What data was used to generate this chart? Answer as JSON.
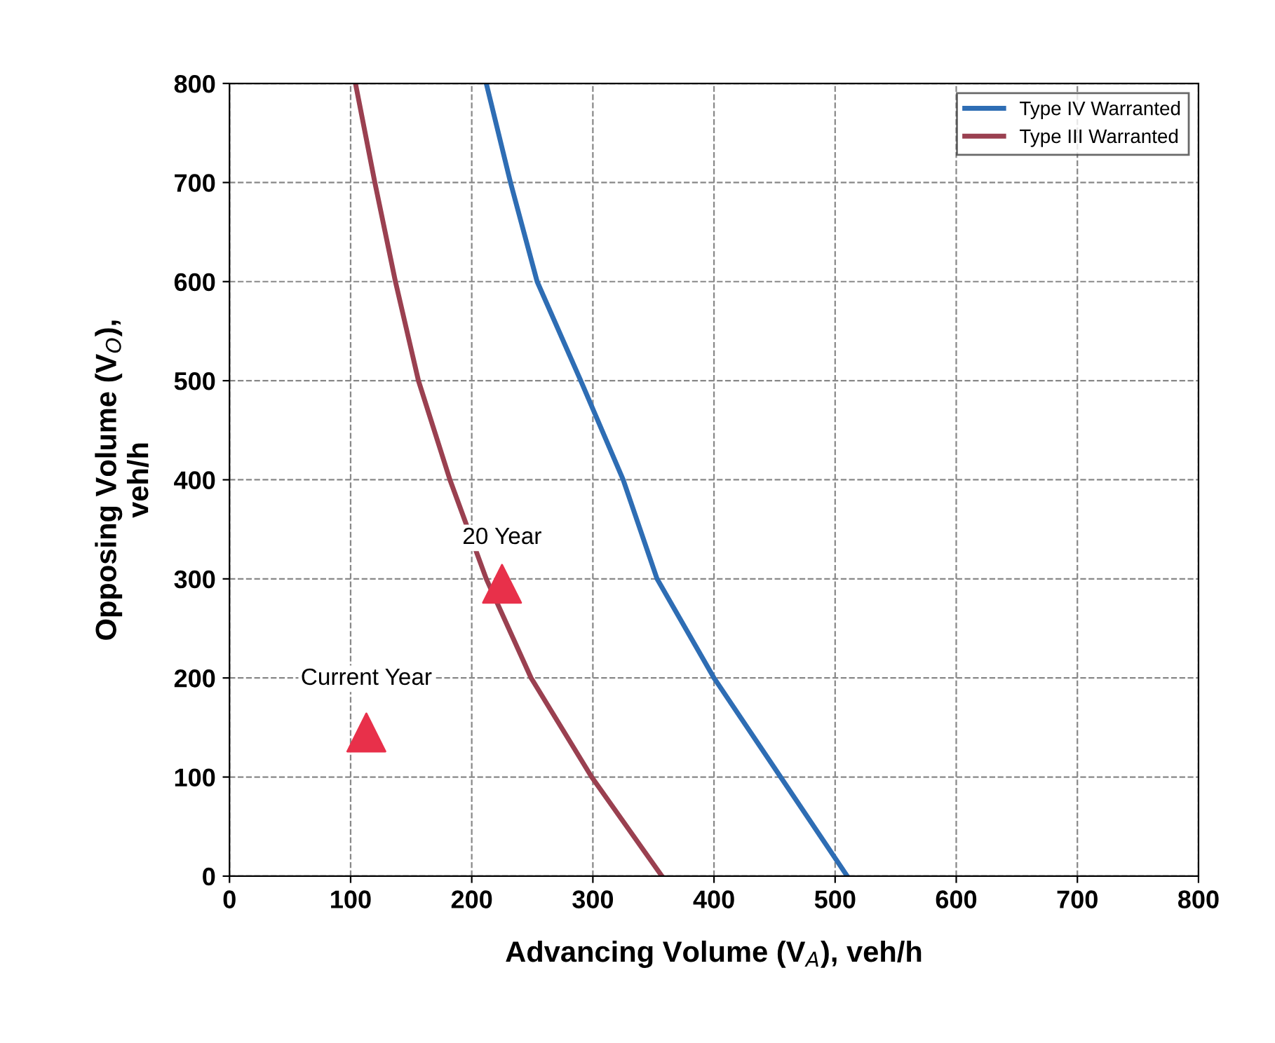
{
  "chart_data": {
    "type": "line",
    "xlabel": "Advancing Volume (V$_{A}$), veh/h",
    "ylabel": "Opposing Volume (V$_{O}$),\nveh/h",
    "xlim": [
      0,
      800
    ],
    "ylim": [
      0,
      800
    ],
    "xticks": [
      0,
      100,
      200,
      300,
      400,
      500,
      600,
      700,
      800
    ],
    "yticks": [
      0,
      100,
      200,
      300,
      400,
      500,
      600,
      700,
      800
    ],
    "grid": true,
    "legend": "top right",
    "series": [
      {
        "name": "Type IV Warranted",
        "color": "#2e6db4",
        "marker": "none",
        "x": [
          212,
          232,
          254,
          290,
          325,
          353,
          400,
          455,
          510
        ],
        "values": [
          800,
          700,
          600,
          500,
          400,
          300,
          200,
          100,
          0
        ]
      },
      {
        "name": "Type III Warranted",
        "color": "#9a4050",
        "marker": "none",
        "x": [
          104,
          120,
          137,
          156,
          182,
          212,
          249,
          299,
          357
        ],
        "values": [
          800,
          700,
          600,
          500,
          400,
          300,
          200,
          100,
          0
        ]
      },
      {
        "type": "scatter",
        "color": "#e8304a",
        "marker": "triangle",
        "x": [
          113,
          225
        ],
        "values": [
          145,
          295
        ]
      }
    ],
    "annotations": [
      "Current Year",
      "20 Year"
    ]
  }
}
